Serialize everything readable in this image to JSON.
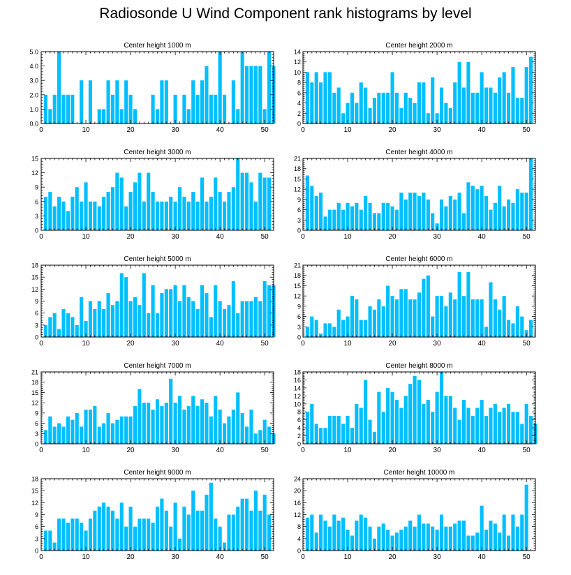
{
  "title": "Radiosonde U Wind Component rank histograms by level",
  "colors": {
    "bar": "#00BFFF",
    "axis": "#000000",
    "background": "#FFFFFF"
  },
  "chart_data": [
    {
      "type": "bar",
      "title": "Center height 1000 m",
      "xlim": [
        0,
        52
      ],
      "ylim": [
        0,
        5
      ],
      "xticks": [
        0,
        10,
        20,
        30,
        40,
        50
      ],
      "yticks": [
        0,
        1,
        2,
        3,
        4,
        5
      ],
      "ytick_labels": [
        "0.0",
        "1.0",
        "2.0",
        "3.0",
        "4.0",
        "5.0"
      ],
      "values": [
        0,
        2,
        1,
        2,
        5,
        2,
        2,
        2,
        0,
        3,
        0,
        3,
        0,
        1,
        1,
        3,
        2,
        3,
        1,
        3,
        2,
        1,
        0,
        0,
        0,
        2,
        1,
        3,
        3,
        0,
        2,
        0,
        2,
        1,
        3,
        2,
        3,
        4,
        2,
        2,
        5,
        2,
        0,
        3,
        1,
        5,
        4,
        4,
        4,
        4,
        1,
        5,
        4
      ]
    },
    {
      "type": "bar",
      "title": "Center height 2000 m",
      "xlim": [
        0,
        52
      ],
      "ylim": [
        0,
        14
      ],
      "xticks": [
        0,
        10,
        20,
        30,
        40,
        50
      ],
      "yticks": [
        0,
        2,
        4,
        6,
        8,
        10,
        12,
        14
      ],
      "ytick_labels": [
        "0",
        "2",
        "4",
        "6",
        "8",
        "10",
        "12",
        "14"
      ],
      "values": [
        0,
        10,
        8,
        10,
        8,
        10,
        10,
        6,
        7,
        2,
        4,
        6,
        4,
        8,
        7,
        3,
        5,
        6,
        6,
        6,
        10,
        6,
        3,
        6,
        5,
        4,
        8,
        8,
        2,
        9,
        2,
        7,
        4,
        3,
        8,
        12,
        7,
        12,
        6,
        6,
        10,
        7,
        7,
        6,
        9,
        10,
        6,
        11,
        5,
        5,
        11,
        13,
        0
      ]
    },
    {
      "type": "bar",
      "title": "Center height 3000 m",
      "xlim": [
        0,
        52
      ],
      "ylim": [
        0,
        15
      ],
      "xticks": [
        0,
        10,
        20,
        30,
        40,
        50
      ],
      "yticks": [
        0,
        3,
        6,
        9,
        12,
        15
      ],
      "ytick_labels": [
        "0",
        "3",
        "6",
        "9",
        "12",
        "15"
      ],
      "values": [
        0,
        7,
        8,
        5,
        7,
        6,
        4,
        7,
        9,
        6,
        10,
        6,
        6,
        5,
        7,
        8,
        9,
        12,
        11,
        5,
        8,
        10,
        12,
        6,
        12,
        8,
        6,
        6,
        6,
        7,
        6,
        9,
        7,
        6,
        8,
        6,
        11,
        6,
        7,
        11,
        8,
        6,
        8,
        9,
        15,
        12,
        12,
        10,
        6,
        12,
        11,
        11,
        0
      ]
    },
    {
      "type": "bar",
      "title": "Center height 4000 m",
      "xlim": [
        0,
        52
      ],
      "ylim": [
        0,
        21
      ],
      "xticks": [
        0,
        10,
        20,
        30,
        40,
        50
      ],
      "yticks": [
        0,
        3,
        6,
        9,
        12,
        15,
        18,
        21
      ],
      "ytick_labels": [
        "0",
        "3",
        "6",
        "9",
        "12",
        "15",
        "18",
        "21"
      ],
      "values": [
        0,
        16,
        13,
        10,
        11,
        4,
        6,
        6,
        8,
        6,
        8,
        7,
        8,
        6,
        10,
        8,
        5,
        5,
        8,
        8,
        7,
        6,
        11,
        9,
        11,
        11,
        10,
        11,
        9,
        5,
        2,
        9,
        7,
        10,
        9,
        11,
        5,
        14,
        13,
        12,
        13,
        10,
        6,
        8,
        13,
        7,
        9,
        8,
        12,
        11,
        11,
        21,
        0
      ]
    },
    {
      "type": "bar",
      "title": "Center height 5000 m",
      "xlim": [
        0,
        52
      ],
      "ylim": [
        0,
        18
      ],
      "xticks": [
        0,
        10,
        20,
        30,
        40,
        50
      ],
      "yticks": [
        0,
        3,
        6,
        9,
        12,
        15,
        18
      ],
      "ytick_labels": [
        "0",
        "3",
        "6",
        "9",
        "12",
        "15",
        "18"
      ],
      "values": [
        0,
        3,
        5,
        6,
        2,
        7,
        6,
        5,
        3,
        10,
        4,
        9,
        7,
        9,
        7,
        11,
        8,
        9,
        16,
        15,
        9,
        10,
        8,
        16,
        6,
        13,
        6,
        11,
        12,
        12,
        13,
        9,
        13,
        10,
        9,
        7,
        13,
        11,
        5,
        13,
        9,
        7,
        8,
        14,
        6,
        9,
        9,
        9,
        10,
        9,
        14,
        13,
        13
      ]
    },
    {
      "type": "bar",
      "title": "Center height 6000 m",
      "xlim": [
        0,
        52
      ],
      "ylim": [
        0,
        21
      ],
      "xticks": [
        0,
        10,
        20,
        30,
        40,
        50
      ],
      "yticks": [
        0,
        3,
        6,
        9,
        12,
        15,
        18,
        21
      ],
      "ytick_labels": [
        "0",
        "3",
        "6",
        "9",
        "12",
        "15",
        "18",
        "21"
      ],
      "values": [
        0,
        3,
        6,
        5,
        1,
        4,
        4,
        3,
        8,
        5,
        6,
        12,
        11,
        5,
        5,
        9,
        8,
        11,
        9,
        15,
        12,
        11,
        14,
        14,
        11,
        11,
        13,
        17,
        18,
        6,
        12,
        12,
        9,
        13,
        11,
        19,
        12,
        19,
        11,
        11,
        11,
        3,
        16,
        11,
        8,
        12,
        5,
        4,
        9,
        6,
        2,
        5,
        0
      ]
    },
    {
      "type": "bar",
      "title": "Center height 7000 m",
      "xlim": [
        0,
        52
      ],
      "ylim": [
        0,
        21
      ],
      "xticks": [
        0,
        10,
        20,
        30,
        40,
        50
      ],
      "yticks": [
        0,
        3,
        6,
        9,
        12,
        15,
        18,
        21
      ],
      "ytick_labels": [
        "0",
        "3",
        "6",
        "9",
        "12",
        "15",
        "18",
        "21"
      ],
      "values": [
        0,
        4,
        8,
        5,
        6,
        5,
        8,
        7,
        9,
        5,
        10,
        10,
        11,
        5,
        6,
        9,
        6,
        7,
        8,
        8,
        8,
        11,
        16,
        12,
        12,
        10,
        13,
        11,
        12,
        19,
        12,
        14,
        10,
        11,
        14,
        11,
        13,
        12,
        8,
        14,
        10,
        6,
        8,
        10,
        15,
        9,
        5,
        10,
        3,
        4,
        7,
        5,
        3
      ]
    },
    {
      "type": "bar",
      "title": "Center height 8000 m",
      "xlim": [
        0,
        52
      ],
      "ylim": [
        0,
        18
      ],
      "xticks": [
        0,
        10,
        20,
        30,
        40,
        50
      ],
      "yticks": [
        0,
        2,
        4,
        6,
        8,
        10,
        12,
        14,
        16,
        18
      ],
      "ytick_labels": [
        "0",
        "2",
        "4",
        "6",
        "8",
        "10",
        "12",
        "14",
        "16",
        "18"
      ],
      "values": [
        0,
        8,
        10,
        5,
        4,
        4,
        7,
        7,
        7,
        5,
        7,
        4,
        10,
        9,
        16,
        6,
        3,
        13,
        8,
        14,
        13,
        11,
        9,
        12,
        15,
        17,
        16,
        10,
        11,
        8,
        13,
        18,
        12,
        12,
        9,
        6,
        11,
        9,
        7,
        9,
        11,
        7,
        9,
        10,
        8,
        9,
        10,
        8,
        8,
        5,
        10,
        7,
        5
      ]
    },
    {
      "type": "bar",
      "title": "Center height 9000 m",
      "xlim": [
        0,
        52
      ],
      "ylim": [
        0,
        18
      ],
      "xticks": [
        0,
        10,
        20,
        30,
        40,
        50
      ],
      "yticks": [
        0,
        3,
        6,
        9,
        12,
        15,
        18
      ],
      "ytick_labels": [
        "0",
        "3",
        "6",
        "9",
        "12",
        "15",
        "18"
      ],
      "values": [
        0,
        5,
        5,
        2,
        8,
        8,
        7,
        8,
        8,
        7,
        5,
        8,
        10,
        11,
        12,
        11,
        10,
        8,
        12,
        6,
        11,
        6,
        8,
        8,
        8,
        7,
        11,
        13,
        10,
        6,
        12,
        3,
        11,
        9,
        15,
        10,
        10,
        14,
        17,
        8,
        6,
        2,
        9,
        9,
        11,
        13,
        13,
        10,
        15,
        10,
        14,
        9,
        0
      ]
    },
    {
      "type": "bar",
      "title": "Center height 10000 m",
      "xlim": [
        0,
        52
      ],
      "ylim": [
        0,
        24
      ],
      "xticks": [
        0,
        10,
        20,
        30,
        40,
        50
      ],
      "yticks": [
        0,
        4,
        8,
        12,
        16,
        20,
        24
      ],
      "ytick_labels": [
        "0",
        "4",
        "8",
        "12",
        "16",
        "20",
        "24"
      ],
      "values": [
        0,
        11,
        12,
        6,
        12,
        10,
        8,
        12,
        10,
        11,
        7,
        5,
        10,
        12,
        11,
        8,
        4,
        8,
        9,
        7,
        5,
        6,
        7,
        8,
        10,
        8,
        12,
        9,
        9,
        8,
        7,
        12,
        8,
        8,
        9,
        10,
        10,
        5,
        5,
        6,
        15,
        7,
        10,
        9,
        6,
        12,
        5,
        12,
        8,
        12,
        22,
        0,
        0
      ]
    }
  ]
}
